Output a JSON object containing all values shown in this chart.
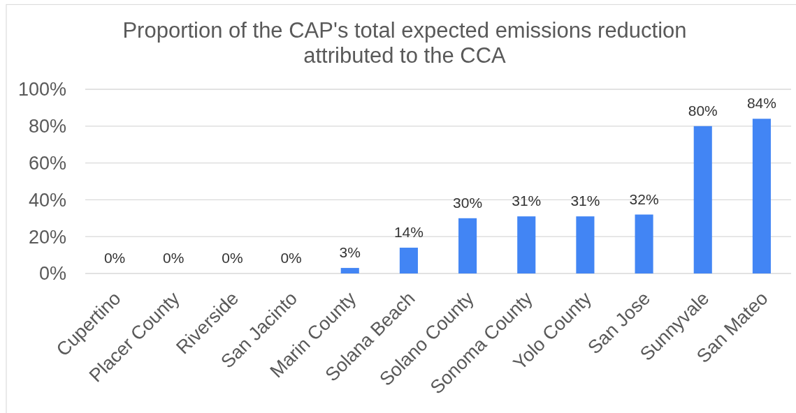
{
  "chart_data": {
    "type": "bar",
    "title": "Proportion of the CAP's total expected emissions reduction attributed to the CCA",
    "categories": [
      "Cupertino",
      "Placer County",
      "Riverside",
      "San Jacinto",
      "Marin County",
      "Solana Beach",
      "Solano County",
      "Sonoma County",
      "Yolo County",
      "San Jose",
      "Sunnyvale",
      "San Mateo"
    ],
    "values": [
      0,
      0,
      0,
      0,
      3,
      14,
      30,
      31,
      31,
      32,
      80,
      84
    ],
    "value_labels": [
      "0%",
      "0%",
      "0%",
      "0%",
      "3%",
      "14%",
      "30%",
      "31%",
      "31%",
      "32%",
      "80%",
      "84%"
    ],
    "color": "#4285f4",
    "ylim": [
      0,
      100
    ],
    "yticks": [
      {
        "value": 0,
        "label": "0%"
      },
      {
        "value": 20,
        "label": "20%"
      },
      {
        "value": 40,
        "label": "40%"
      },
      {
        "value": 60,
        "label": "60%"
      },
      {
        "value": 80,
        "label": "80%"
      },
      {
        "value": 100,
        "label": "100%"
      }
    ],
    "grid": "y"
  }
}
